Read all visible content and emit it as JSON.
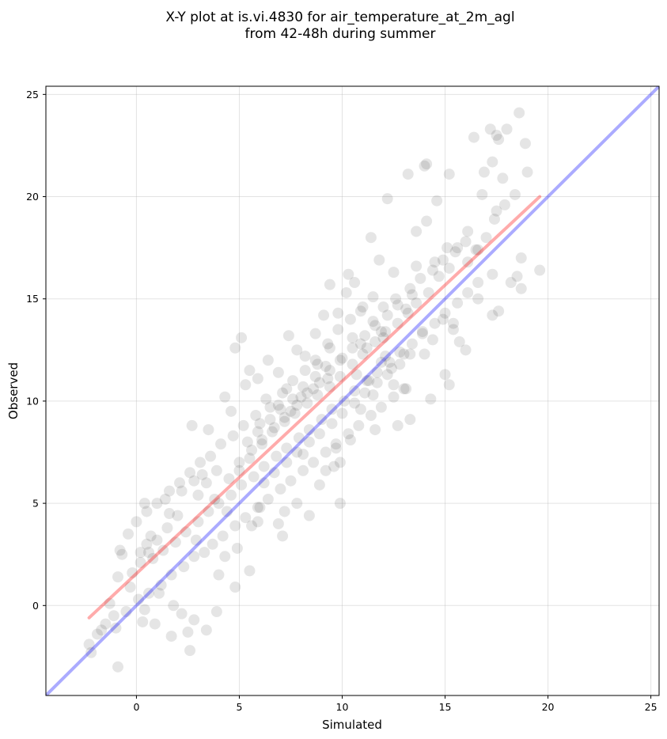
{
  "chart_data": {
    "type": "scatter",
    "title_lines": [
      "X-Y plot at is.vi.4830 for air_temperature_at_2m_agl",
      "from 42-48h during summer"
    ],
    "xlabel": "Simulated",
    "ylabel": "Observed",
    "xlim": [
      -4.4,
      25.4
    ],
    "ylim": [
      -4.4,
      25.4
    ],
    "xticks": [
      0,
      5,
      10,
      15,
      20,
      25
    ],
    "yticks": [
      0,
      5,
      10,
      15,
      20,
      25
    ],
    "grid": true,
    "point_color": "#000000",
    "point_opacity": 0.1,
    "identity_line": {
      "x": [
        -4.4,
        25.4
      ],
      "y": [
        -4.4,
        25.4
      ],
      "color": "#0000ff"
    },
    "fit_line": {
      "x": [
        -2.3,
        19.6
      ],
      "y": [
        -0.6,
        20.0
      ],
      "color": "#ff0000"
    },
    "series": [
      {
        "points": [
          [
            18.6,
            24.1
          ],
          [
            17.2,
            23.3
          ],
          [
            18.0,
            23.3
          ],
          [
            17.5,
            23.0
          ],
          [
            16.4,
            22.9
          ],
          [
            17.6,
            22.8
          ],
          [
            18.9,
            22.6
          ],
          [
            14.1,
            21.6
          ],
          [
            14.0,
            21.5
          ],
          [
            13.2,
            21.1
          ],
          [
            15.2,
            21.1
          ],
          [
            17.3,
            21.7
          ],
          [
            16.9,
            21.2
          ],
          [
            19.0,
            21.2
          ],
          [
            17.8,
            20.9
          ],
          [
            16.8,
            20.1
          ],
          [
            18.4,
            20.1
          ],
          [
            14.6,
            19.8
          ],
          [
            12.2,
            19.9
          ],
          [
            17.5,
            19.3
          ],
          [
            14.1,
            18.8
          ],
          [
            16.1,
            18.3
          ],
          [
            13.6,
            18.3
          ],
          [
            11.4,
            18.0
          ],
          [
            16.6,
            17.4
          ],
          [
            18.7,
            17.0
          ],
          [
            15.1,
            17.5
          ],
          [
            14.5,
            16.8
          ],
          [
            11.8,
            16.9
          ],
          [
            10.3,
            16.2
          ],
          [
            17.3,
            16.2
          ],
          [
            18.5,
            16.1
          ],
          [
            19.6,
            16.4
          ],
          [
            18.2,
            15.8
          ],
          [
            18.7,
            15.5
          ],
          [
            13.6,
            16.6
          ],
          [
            12.5,
            16.3
          ],
          [
            9.4,
            15.7
          ],
          [
            16.6,
            15.0
          ],
          [
            17.6,
            14.4
          ],
          [
            17.3,
            14.2
          ],
          [
            15.4,
            13.8
          ],
          [
            15.7,
            12.9
          ],
          [
            16.0,
            12.5
          ],
          [
            14.0,
            12.3
          ],
          [
            15.0,
            11.3
          ],
          [
            15.2,
            10.8
          ],
          [
            13.1,
            10.6
          ],
          [
            14.3,
            10.1
          ],
          [
            11.9,
            13.4
          ],
          [
            10.9,
            12.8
          ],
          [
            10.7,
            11.3
          ],
          [
            12.1,
            12.2
          ],
          [
            11.3,
            11.0
          ],
          [
            11.5,
            10.3
          ],
          [
            12.5,
            10.8
          ],
          [
            13.3,
            9.1
          ],
          [
            12.7,
            8.8
          ],
          [
            11.6,
            8.6
          ],
          [
            10.9,
            9.6
          ],
          [
            10.4,
            8.1
          ],
          [
            9.7,
            7.7
          ],
          [
            9.9,
            7.0
          ],
          [
            9.6,
            6.8
          ],
          [
            9.2,
            6.6
          ],
          [
            9.9,
            5.0
          ],
          [
            8.9,
            5.9
          ],
          [
            8.1,
            7.4
          ],
          [
            8.4,
            4.4
          ],
          [
            7.8,
            5.0
          ],
          [
            7.2,
            4.6
          ],
          [
            6.9,
            4.0
          ],
          [
            7.1,
            3.4
          ],
          [
            6.0,
            4.8
          ],
          [
            5.9,
            4.1
          ],
          [
            5.6,
            3.9
          ],
          [
            5.5,
            1.7
          ],
          [
            4.9,
            2.8
          ],
          [
            4.3,
            2.4
          ],
          [
            4.8,
            0.9
          ],
          [
            4.0,
            1.5
          ],
          [
            3.9,
            -0.3
          ],
          [
            3.4,
            -1.2
          ],
          [
            2.8,
            -0.7
          ],
          [
            2.5,
            -1.3
          ],
          [
            2.6,
            -2.2
          ],
          [
            1.7,
            -1.5
          ],
          [
            2.2,
            -0.4
          ],
          [
            1.8,
            0.0
          ],
          [
            1.1,
            0.6
          ],
          [
            0.6,
            0.6
          ],
          [
            0.9,
            -0.9
          ],
          [
            0.3,
            -0.8
          ],
          [
            0.4,
            -0.2
          ],
          [
            -0.5,
            -0.3
          ],
          [
            -1.1,
            -0.5
          ],
          [
            -1.7,
            -1.2
          ],
          [
            -1.9,
            -1.4
          ],
          [
            -2.3,
            -1.9
          ],
          [
            -2.2,
            -2.3
          ],
          [
            -1.3,
            0.1
          ],
          [
            -0.9,
            1.4
          ],
          [
            -0.7,
            2.5
          ],
          [
            -0.8,
            2.7
          ],
          [
            -0.9,
            -3.0
          ],
          [
            -0.2,
            1.6
          ],
          [
            0.2,
            2.1
          ],
          [
            0.5,
            3.0
          ],
          [
            0.7,
            3.4
          ],
          [
            0.4,
            5.0
          ],
          [
            1.4,
            5.2
          ],
          [
            1.6,
            4.5
          ],
          [
            2.2,
            5.6
          ],
          [
            2.8,
            6.1
          ],
          [
            3.2,
            6.4
          ],
          [
            2.7,
            8.8
          ],
          [
            3.5,
            8.6
          ],
          [
            4.3,
            10.2
          ],
          [
            4.6,
            9.5
          ],
          [
            4.8,
            12.6
          ],
          [
            5.1,
            13.1
          ],
          [
            5.5,
            11.5
          ],
          [
            5.3,
            10.8
          ],
          [
            5.9,
            11.1
          ],
          [
            6.4,
            12.0
          ],
          [
            6.9,
            11.4
          ],
          [
            7.4,
            13.2
          ],
          [
            7.8,
            12.5
          ],
          [
            7.3,
            10.6
          ],
          [
            8.2,
            12.2
          ],
          [
            8.7,
            13.3
          ],
          [
            9.1,
            14.2
          ],
          [
            8.8,
            11.8
          ],
          [
            9.4,
            12.6
          ],
          [
            9.8,
            14.3
          ],
          [
            10.2,
            15.3
          ],
          [
            10.6,
            15.8
          ],
          [
            11.0,
            14.6
          ],
          [
            11.5,
            15.1
          ],
          [
            12.0,
            14.6
          ],
          [
            12.6,
            15.0
          ],
          [
            13.1,
            14.5
          ],
          [
            13.6,
            14.8
          ],
          [
            14.2,
            15.3
          ],
          [
            14.7,
            16.1
          ],
          [
            15.2,
            16.5
          ],
          [
            15.6,
            17.5
          ],
          [
            16.1,
            16.8
          ],
          [
            16.5,
            17.4
          ],
          [
            17.0,
            18.0
          ],
          [
            17.4,
            18.9
          ],
          [
            17.9,
            19.6
          ],
          [
            13.4,
            15.2
          ],
          [
            13.9,
            13.4
          ],
          [
            14.4,
            13.0
          ],
          [
            14.9,
            14.0
          ],
          [
            15.4,
            13.5
          ],
          [
            13.0,
            12.3
          ],
          [
            12.4,
            11.6
          ],
          [
            11.9,
            11.9
          ],
          [
            11.2,
            12.6
          ],
          [
            10.5,
            13.1
          ],
          [
            9.9,
            12.0
          ],
          [
            9.3,
            11.1
          ],
          [
            8.6,
            10.6
          ],
          [
            8.0,
            10.2
          ],
          [
            7.5,
            9.5
          ],
          [
            6.9,
            9.8
          ],
          [
            6.3,
            10.1
          ],
          [
            5.8,
            9.3
          ],
          [
            5.2,
            8.8
          ],
          [
            4.7,
            8.3
          ],
          [
            4.1,
            7.9
          ],
          [
            3.6,
            7.3
          ],
          [
            3.1,
            7.0
          ],
          [
            2.6,
            6.5
          ],
          [
            2.1,
            6.0
          ],
          [
            1.6,
            5.6
          ],
          [
            1.0,
            5.0
          ],
          [
            0.5,
            4.6
          ],
          [
            0.0,
            4.1
          ],
          [
            -0.4,
            3.5
          ],
          [
            0.2,
            2.6
          ],
          [
            0.8,
            2.3
          ],
          [
            1.3,
            2.7
          ],
          [
            1.9,
            3.1
          ],
          [
            2.4,
            3.6
          ],
          [
            3.0,
            4.1
          ],
          [
            3.5,
            4.6
          ],
          [
            4.0,
            5.0
          ],
          [
            4.6,
            5.4
          ],
          [
            5.1,
            5.9
          ],
          [
            5.7,
            6.3
          ],
          [
            6.2,
            6.8
          ],
          [
            6.8,
            7.3
          ],
          [
            7.3,
            7.7
          ],
          [
            7.9,
            8.2
          ],
          [
            8.4,
            8.6
          ],
          [
            9.0,
            9.1
          ],
          [
            9.5,
            9.6
          ],
          [
            10.1,
            10.0
          ],
          [
            10.6,
            10.5
          ],
          [
            11.2,
            11.0
          ],
          [
            11.7,
            11.4
          ],
          [
            12.3,
            11.9
          ],
          [
            12.8,
            12.4
          ],
          [
            13.4,
            12.8
          ],
          [
            13.9,
            13.3
          ],
          [
            14.5,
            13.8
          ],
          [
            15.0,
            14.3
          ],
          [
            15.6,
            14.8
          ],
          [
            16.1,
            15.3
          ],
          [
            16.6,
            15.8
          ],
          [
            3.8,
            5.2
          ],
          [
            4.4,
            4.6
          ],
          [
            5.0,
            6.6
          ],
          [
            5.5,
            7.2
          ],
          [
            6.1,
            7.9
          ],
          [
            6.6,
            8.5
          ],
          [
            7.2,
            9.0
          ],
          [
            7.7,
            9.4
          ],
          [
            8.3,
            9.9
          ],
          [
            8.8,
            10.3
          ],
          [
            9.4,
            10.7
          ],
          [
            9.9,
            11.2
          ],
          [
            10.5,
            11.8
          ],
          [
            11.0,
            12.3
          ],
          [
            11.6,
            12.9
          ],
          [
            12.1,
            13.4
          ],
          [
            12.7,
            13.8
          ],
          [
            13.2,
            14.3
          ],
          [
            2.9,
            3.2
          ],
          [
            3.3,
            2.6
          ],
          [
            3.7,
            3.0
          ],
          [
            4.2,
            3.4
          ],
          [
            4.8,
            3.9
          ],
          [
            5.3,
            4.3
          ],
          [
            5.9,
            4.8
          ],
          [
            6.4,
            5.2
          ],
          [
            7.0,
            5.7
          ],
          [
            7.5,
            6.1
          ],
          [
            8.1,
            6.6
          ],
          [
            8.6,
            7.0
          ],
          [
            9.2,
            7.5
          ],
          [
            9.7,
            7.9
          ],
          [
            10.3,
            8.4
          ],
          [
            10.8,
            8.8
          ],
          [
            11.4,
            9.3
          ],
          [
            11.9,
            9.7
          ],
          [
            12.5,
            10.2
          ],
          [
            13.0,
            10.6
          ],
          [
            1.2,
            1.0
          ],
          [
            1.7,
            1.5
          ],
          [
            2.3,
            1.9
          ],
          [
            2.8,
            2.4
          ],
          [
            0.1,
            0.3
          ],
          [
            -0.3,
            0.9
          ],
          [
            -1.5,
            -0.9
          ],
          [
            -1.0,
            -1.1
          ],
          [
            6.0,
            8.9
          ],
          [
            6.5,
            9.7
          ],
          [
            7.1,
            10.4
          ],
          [
            7.6,
            11.0
          ],
          [
            8.2,
            11.5
          ],
          [
            8.7,
            12.0
          ],
          [
            9.3,
            12.8
          ],
          [
            9.8,
            13.5
          ],
          [
            10.4,
            14.0
          ],
          [
            10.9,
            14.4
          ],
          [
            11.5,
            13.9
          ],
          [
            12.0,
            13.1
          ],
          [
            4.5,
            6.2
          ],
          [
            5.0,
            7.0
          ],
          [
            5.6,
            7.6
          ],
          [
            6.1,
            8.1
          ],
          [
            6.7,
            8.7
          ],
          [
            7.2,
            9.2
          ],
          [
            7.8,
            9.8
          ],
          [
            8.3,
            10.4
          ],
          [
            8.9,
            10.9
          ],
          [
            9.4,
            11.5
          ],
          [
            10.0,
            12.1
          ],
          [
            10.5,
            12.6
          ],
          [
            11.1,
            13.2
          ],
          [
            11.6,
            13.7
          ],
          [
            12.2,
            14.2
          ],
          [
            12.7,
            14.7
          ],
          [
            13.3,
            15.5
          ],
          [
            13.8,
            16.0
          ],
          [
            14.4,
            16.4
          ],
          [
            14.9,
            16.9
          ],
          [
            15.5,
            17.3
          ],
          [
            16.0,
            17.8
          ],
          [
            3.0,
            5.4
          ],
          [
            3.4,
            6.0
          ],
          [
            3.9,
            6.6
          ],
          [
            2.0,
            4.4
          ],
          [
            1.5,
            3.8
          ],
          [
            1.0,
            3.2
          ],
          [
            0.6,
            2.6
          ],
          [
            5.4,
            8.0
          ],
          [
            5.9,
            8.5
          ],
          [
            6.5,
            9.1
          ],
          [
            7.0,
            9.6
          ],
          [
            7.6,
            10.1
          ],
          [
            8.1,
            10.7
          ],
          [
            8.7,
            11.2
          ],
          [
            9.2,
            11.7
          ],
          [
            6.2,
            6.0
          ],
          [
            6.7,
            6.5
          ],
          [
            7.3,
            7.0
          ],
          [
            7.8,
            7.5
          ],
          [
            8.4,
            8.0
          ],
          [
            8.9,
            8.4
          ],
          [
            9.5,
            8.9
          ],
          [
            10.0,
            9.4
          ],
          [
            10.6,
            9.9
          ],
          [
            11.1,
            10.4
          ],
          [
            11.7,
            10.9
          ],
          [
            12.2,
            11.3
          ],
          [
            12.8,
            11.8
          ],
          [
            13.3,
            12.3
          ]
        ]
      }
    ]
  }
}
